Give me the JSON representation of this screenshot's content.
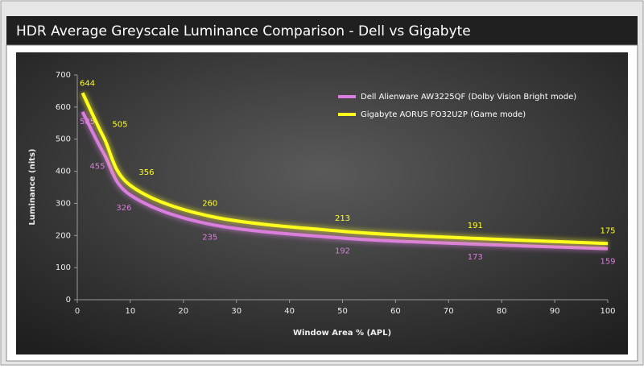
{
  "chart_data": {
    "type": "line",
    "title": "HDR Average Greyscale Luminance Comparison - Dell vs Gigabyte",
    "x_label": "Window Area % (APL)",
    "y_label": "Luminance (nits)",
    "x": [
      1,
      5,
      10,
      25,
      50,
      75,
      100
    ],
    "series": [
      {
        "name": "Dell Alienware AW3225QF (Dolby Vision Bright mode)",
        "color": "#d97ddf",
        "values": [
          585,
          455,
          326,
          235,
          192,
          173,
          159
        ]
      },
      {
        "name": "Gigabyte AORUS FO32U2P (Game mode)",
        "color": "#ffff1e",
        "values": [
          644,
          505,
          356,
          260,
          213,
          191,
          175
        ]
      }
    ],
    "xlim": [
      0,
      100
    ],
    "xticks": [
      0,
      10,
      20,
      30,
      40,
      50,
      60,
      70,
      80,
      90,
      100
    ],
    "ylim": [
      0,
      700
    ],
    "yticks": [
      0,
      100,
      200,
      300,
      400,
      500,
      600,
      700
    ],
    "grid": false,
    "legend": "upper-right"
  }
}
